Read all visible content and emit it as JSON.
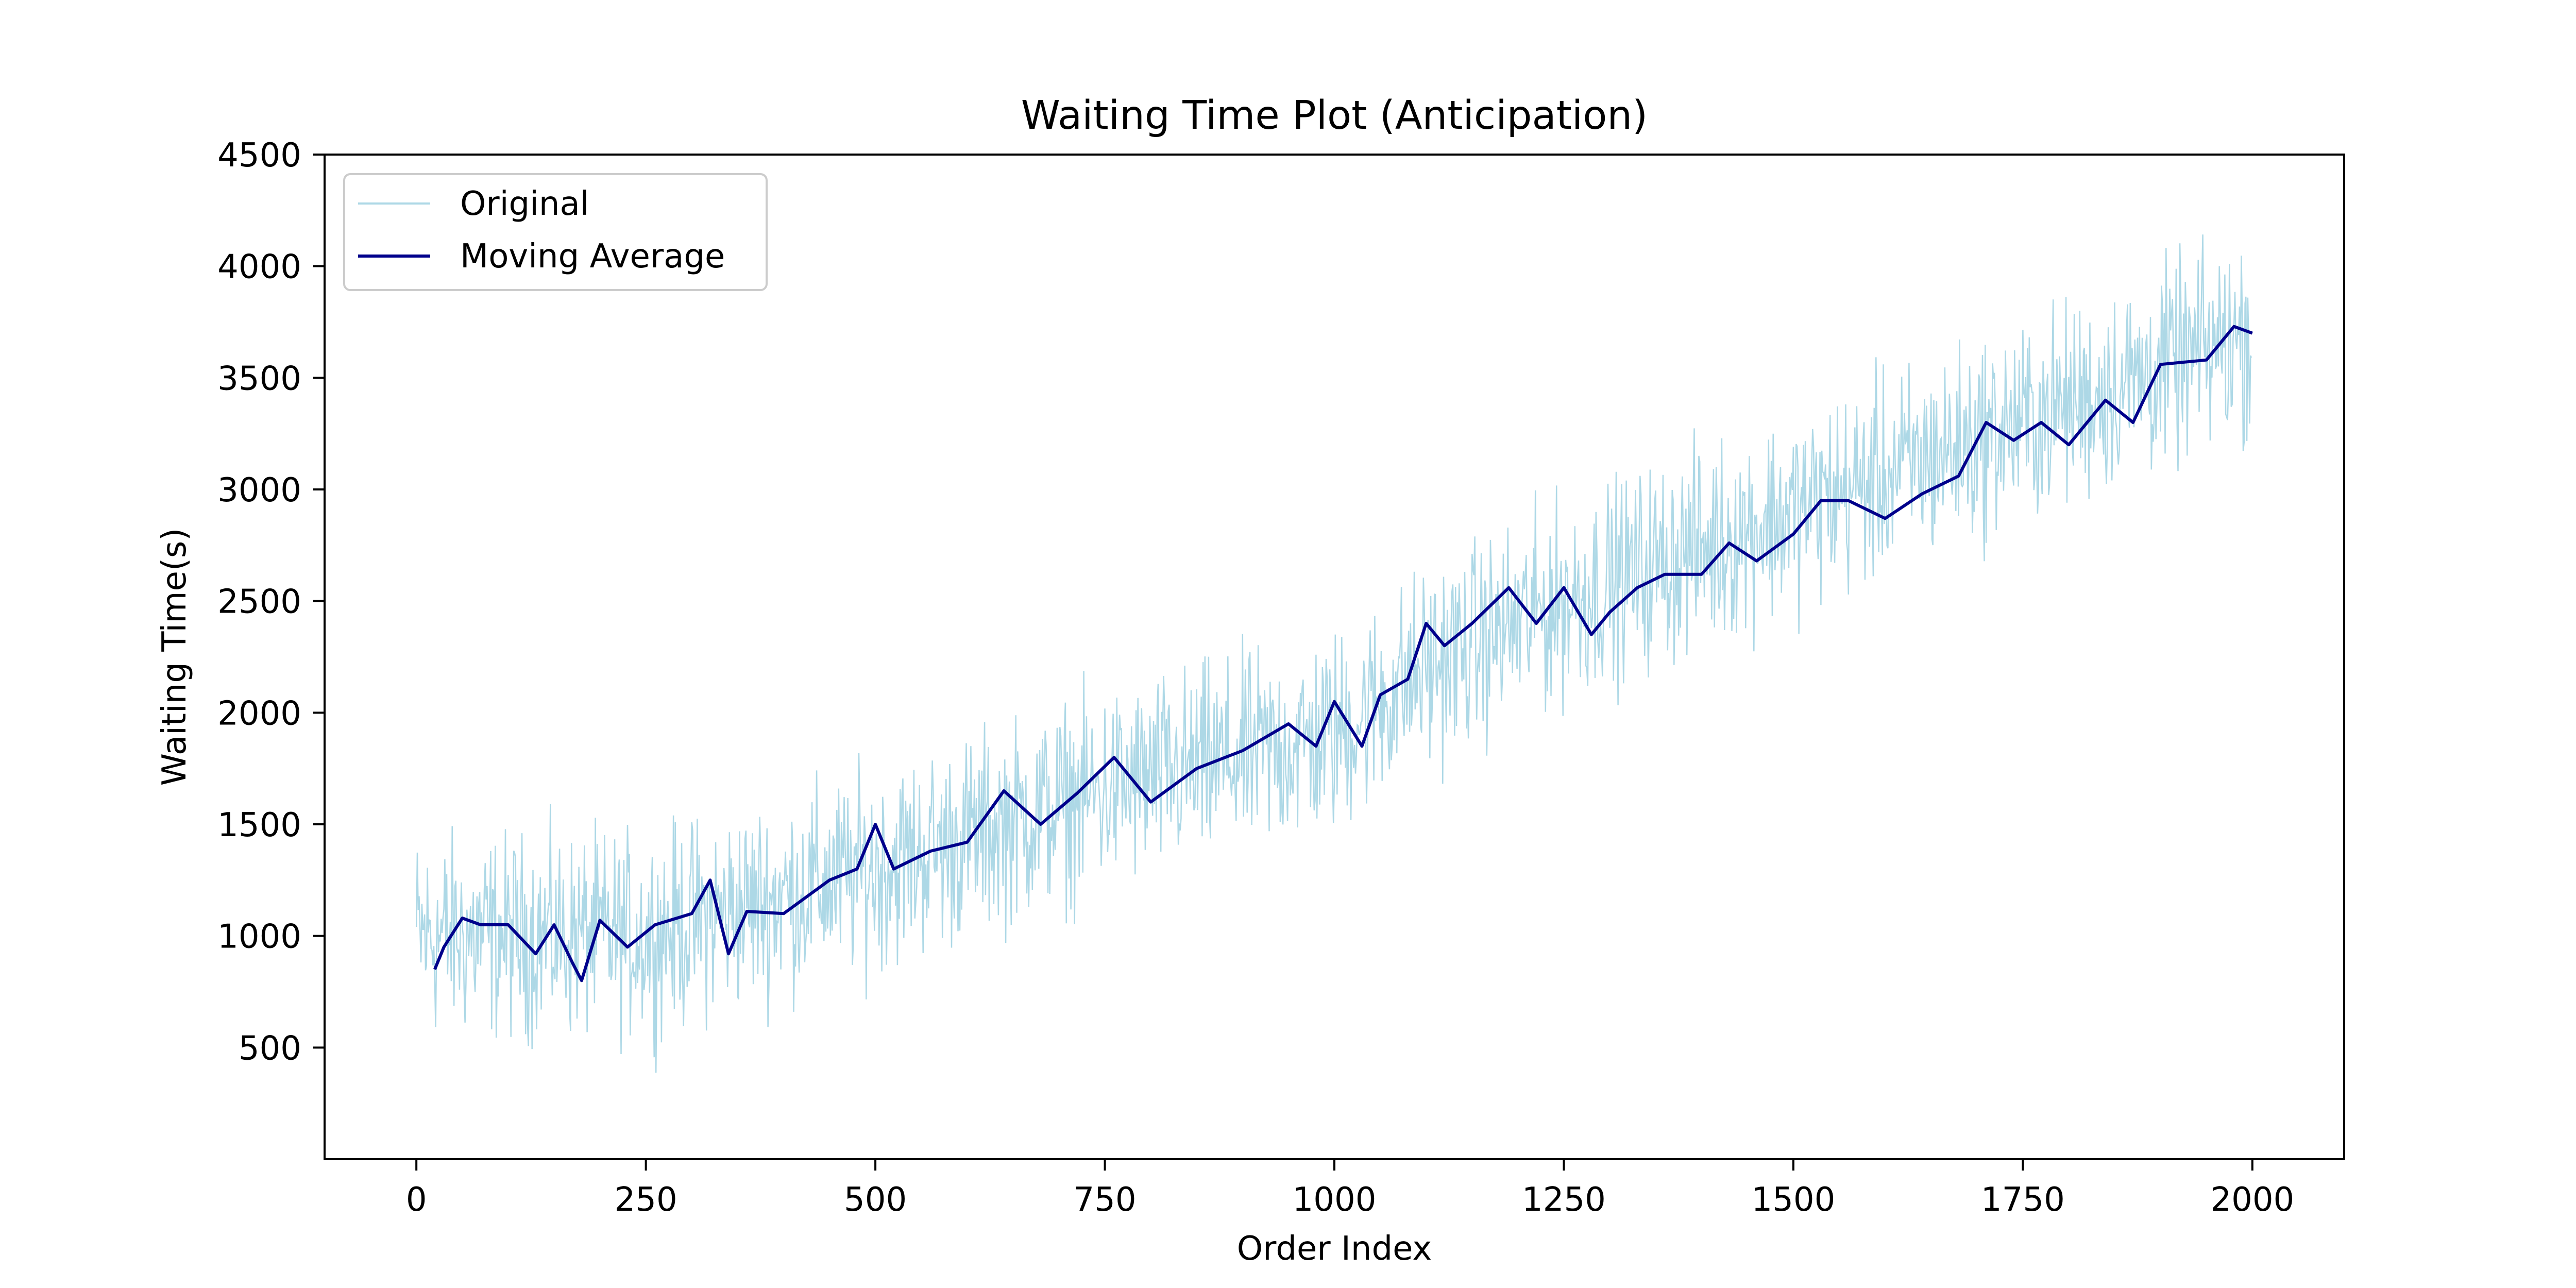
{
  "chart_data": {
    "type": "line",
    "title": "Waiting Time Plot (Anticipation)",
    "xlabel": "Order Index",
    "ylabel": "Waiting Time(s)",
    "xlim": [
      -100,
      2100
    ],
    "ylim": [
      0,
      4500
    ],
    "xticks": [
      0,
      250,
      500,
      750,
      1000,
      1250,
      1500,
      1750,
      2000
    ],
    "yticks": [
      500,
      1000,
      1500,
      2000,
      2500,
      3000,
      3500,
      4000,
      4500
    ],
    "grid": false,
    "legend": {
      "position": "top-left",
      "entries": [
        "Original",
        "Moving Average"
      ]
    },
    "series": [
      {
        "name": "Original",
        "color": "#add8e6",
        "trend": {
          "x": [
            0,
            250,
            500,
            750,
            1000,
            1100,
            1250,
            1500,
            1750,
            2000
          ],
          "y": [
            1000,
            1000,
            1300,
            1650,
            1900,
            2200,
            2500,
            2900,
            3300,
            3700
          ]
        },
        "noise_amplitude": 400,
        "n_points": 2000
      },
      {
        "name": "Moving Average",
        "color": "#00008b",
        "x": [
          20,
          30,
          50,
          70,
          100,
          130,
          150,
          170,
          180,
          200,
          230,
          260,
          300,
          320,
          340,
          360,
          400,
          450,
          480,
          500,
          520,
          560,
          600,
          640,
          680,
          720,
          760,
          800,
          850,
          900,
          950,
          980,
          1000,
          1030,
          1050,
          1080,
          1100,
          1120,
          1150,
          1190,
          1220,
          1250,
          1280,
          1300,
          1330,
          1360,
          1400,
          1430,
          1460,
          1500,
          1530,
          1560,
          1600,
          1640,
          1680,
          1710,
          1740,
          1770,
          1800,
          1840,
          1870,
          1900,
          1950,
          1980,
          2000
        ],
        "y": [
          850,
          950,
          1080,
          1050,
          1050,
          920,
          1050,
          880,
          800,
          1070,
          950,
          1050,
          1100,
          1250,
          920,
          1110,
          1100,
          1250,
          1300,
          1500,
          1300,
          1380,
          1420,
          1650,
          1500,
          1640,
          1800,
          1600,
          1750,
          1830,
          1950,
          1850,
          2050,
          1850,
          2080,
          2150,
          2400,
          2300,
          2400,
          2560,
          2400,
          2560,
          2350,
          2450,
          2560,
          2620,
          2620,
          2760,
          2680,
          2800,
          2950,
          2950,
          2870,
          2980,
          3060,
          3300,
          3220,
          3300,
          3200,
          3400,
          3300,
          3560,
          3580,
          3730,
          3700
        ]
      }
    ]
  }
}
